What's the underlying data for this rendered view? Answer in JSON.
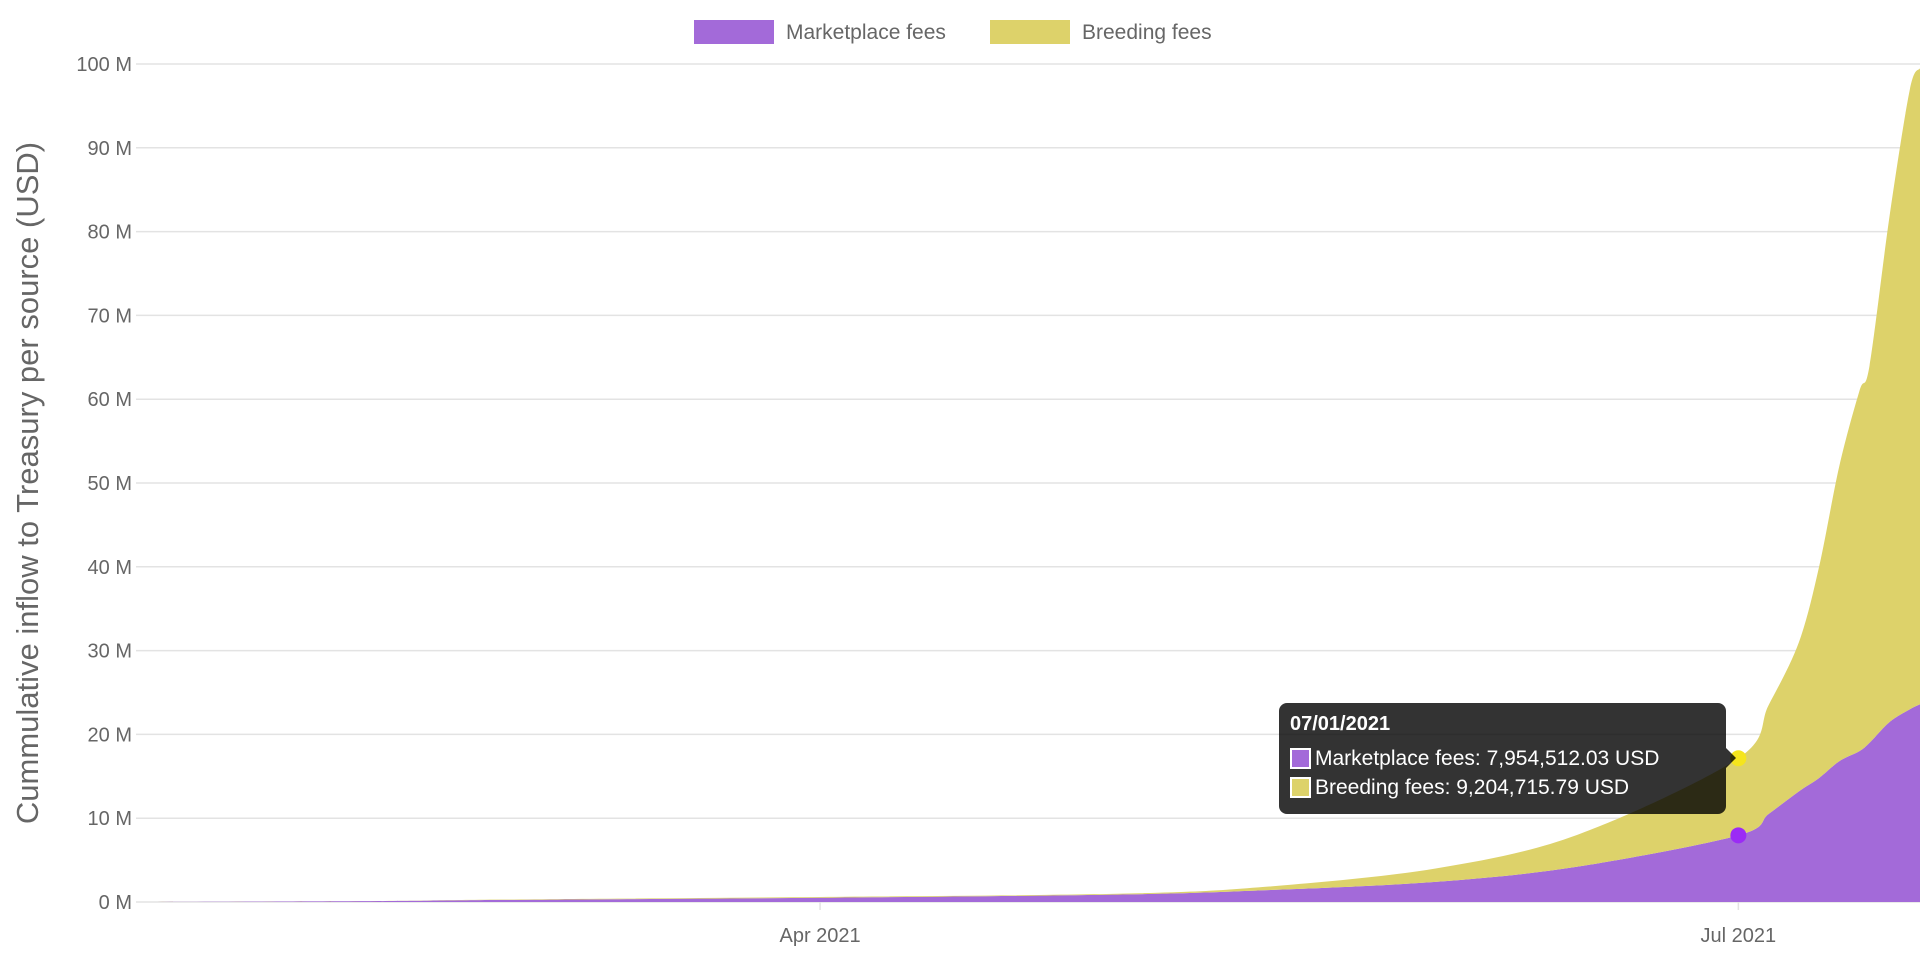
{
  "chart_data": {
    "type": "area",
    "stacked": true,
    "title": "",
    "xlabel": "",
    "ylabel": "Cummulative inflow to Treasury per source (USD)",
    "x_ticks": [
      {
        "date": "2021-04-01",
        "label": "Apr 2021"
      },
      {
        "date": "2021-07-01",
        "label": "Jul 2021"
      }
    ],
    "xlim": [
      "2021-01-24",
      "2021-07-19"
    ],
    "ylim": [
      0,
      100000000
    ],
    "y_ticks": [
      {
        "value": 0,
        "label": "0 M"
      },
      {
        "value": 10000000,
        "label": "10 M"
      },
      {
        "value": 20000000,
        "label": "20 M"
      },
      {
        "value": 30000000,
        "label": "30 M"
      },
      {
        "value": 40000000,
        "label": "40 M"
      },
      {
        "value": 50000000,
        "label": "50 M"
      },
      {
        "value": 60000000,
        "label": "60 M"
      },
      {
        "value": 70000000,
        "label": "70 M"
      },
      {
        "value": 80000000,
        "label": "80 M"
      },
      {
        "value": 90000000,
        "label": "90 M"
      },
      {
        "value": 100000000,
        "label": "100 M"
      }
    ],
    "grid": true,
    "legend_position": "top",
    "x": [
      "2021-01-24",
      "2021-02-15",
      "2021-03-01",
      "2021-04-01",
      "2021-05-01",
      "2021-05-15",
      "2021-06-01",
      "2021-06-15",
      "2021-07-01",
      "2021-07-04",
      "2021-07-07",
      "2021-07-09",
      "2021-07-11",
      "2021-07-13",
      "2021-07-14",
      "2021-07-16",
      "2021-07-18",
      "2021-07-19"
    ],
    "series": [
      {
        "name": "Marketplace fees",
        "color": "#a36ad9",
        "values": [
          0,
          100000,
          250000,
          500000,
          900000,
          1400000,
          2400000,
          4200000,
          7954512.03,
          10500000,
          13200000,
          14800000,
          16800000,
          18000000,
          19000000,
          21500000,
          23000000,
          23600000
        ]
      },
      {
        "name": "Breeding fees",
        "color": "#ddd26a",
        "values": [
          0,
          10000,
          50000,
          100000,
          100000,
          400000,
          1600000,
          3800000,
          9204715.79,
          13000000,
          17800000,
          25200000,
          35200000,
          43000000,
          45000000,
          60500000,
          74000000,
          75900000
        ]
      }
    ]
  },
  "tooltip": {
    "title": "07/01/2021",
    "rows": [
      {
        "text": "Marketplace fees: 7,954,512.03 USD",
        "color": "#a36ad9"
      },
      {
        "text": "Breeding fees: 9,204,715.79 USD",
        "color": "#ddd26a"
      }
    ],
    "point_colors": {
      "marketplace": "#9b2bf5",
      "breeding": "#f5e51c"
    }
  }
}
